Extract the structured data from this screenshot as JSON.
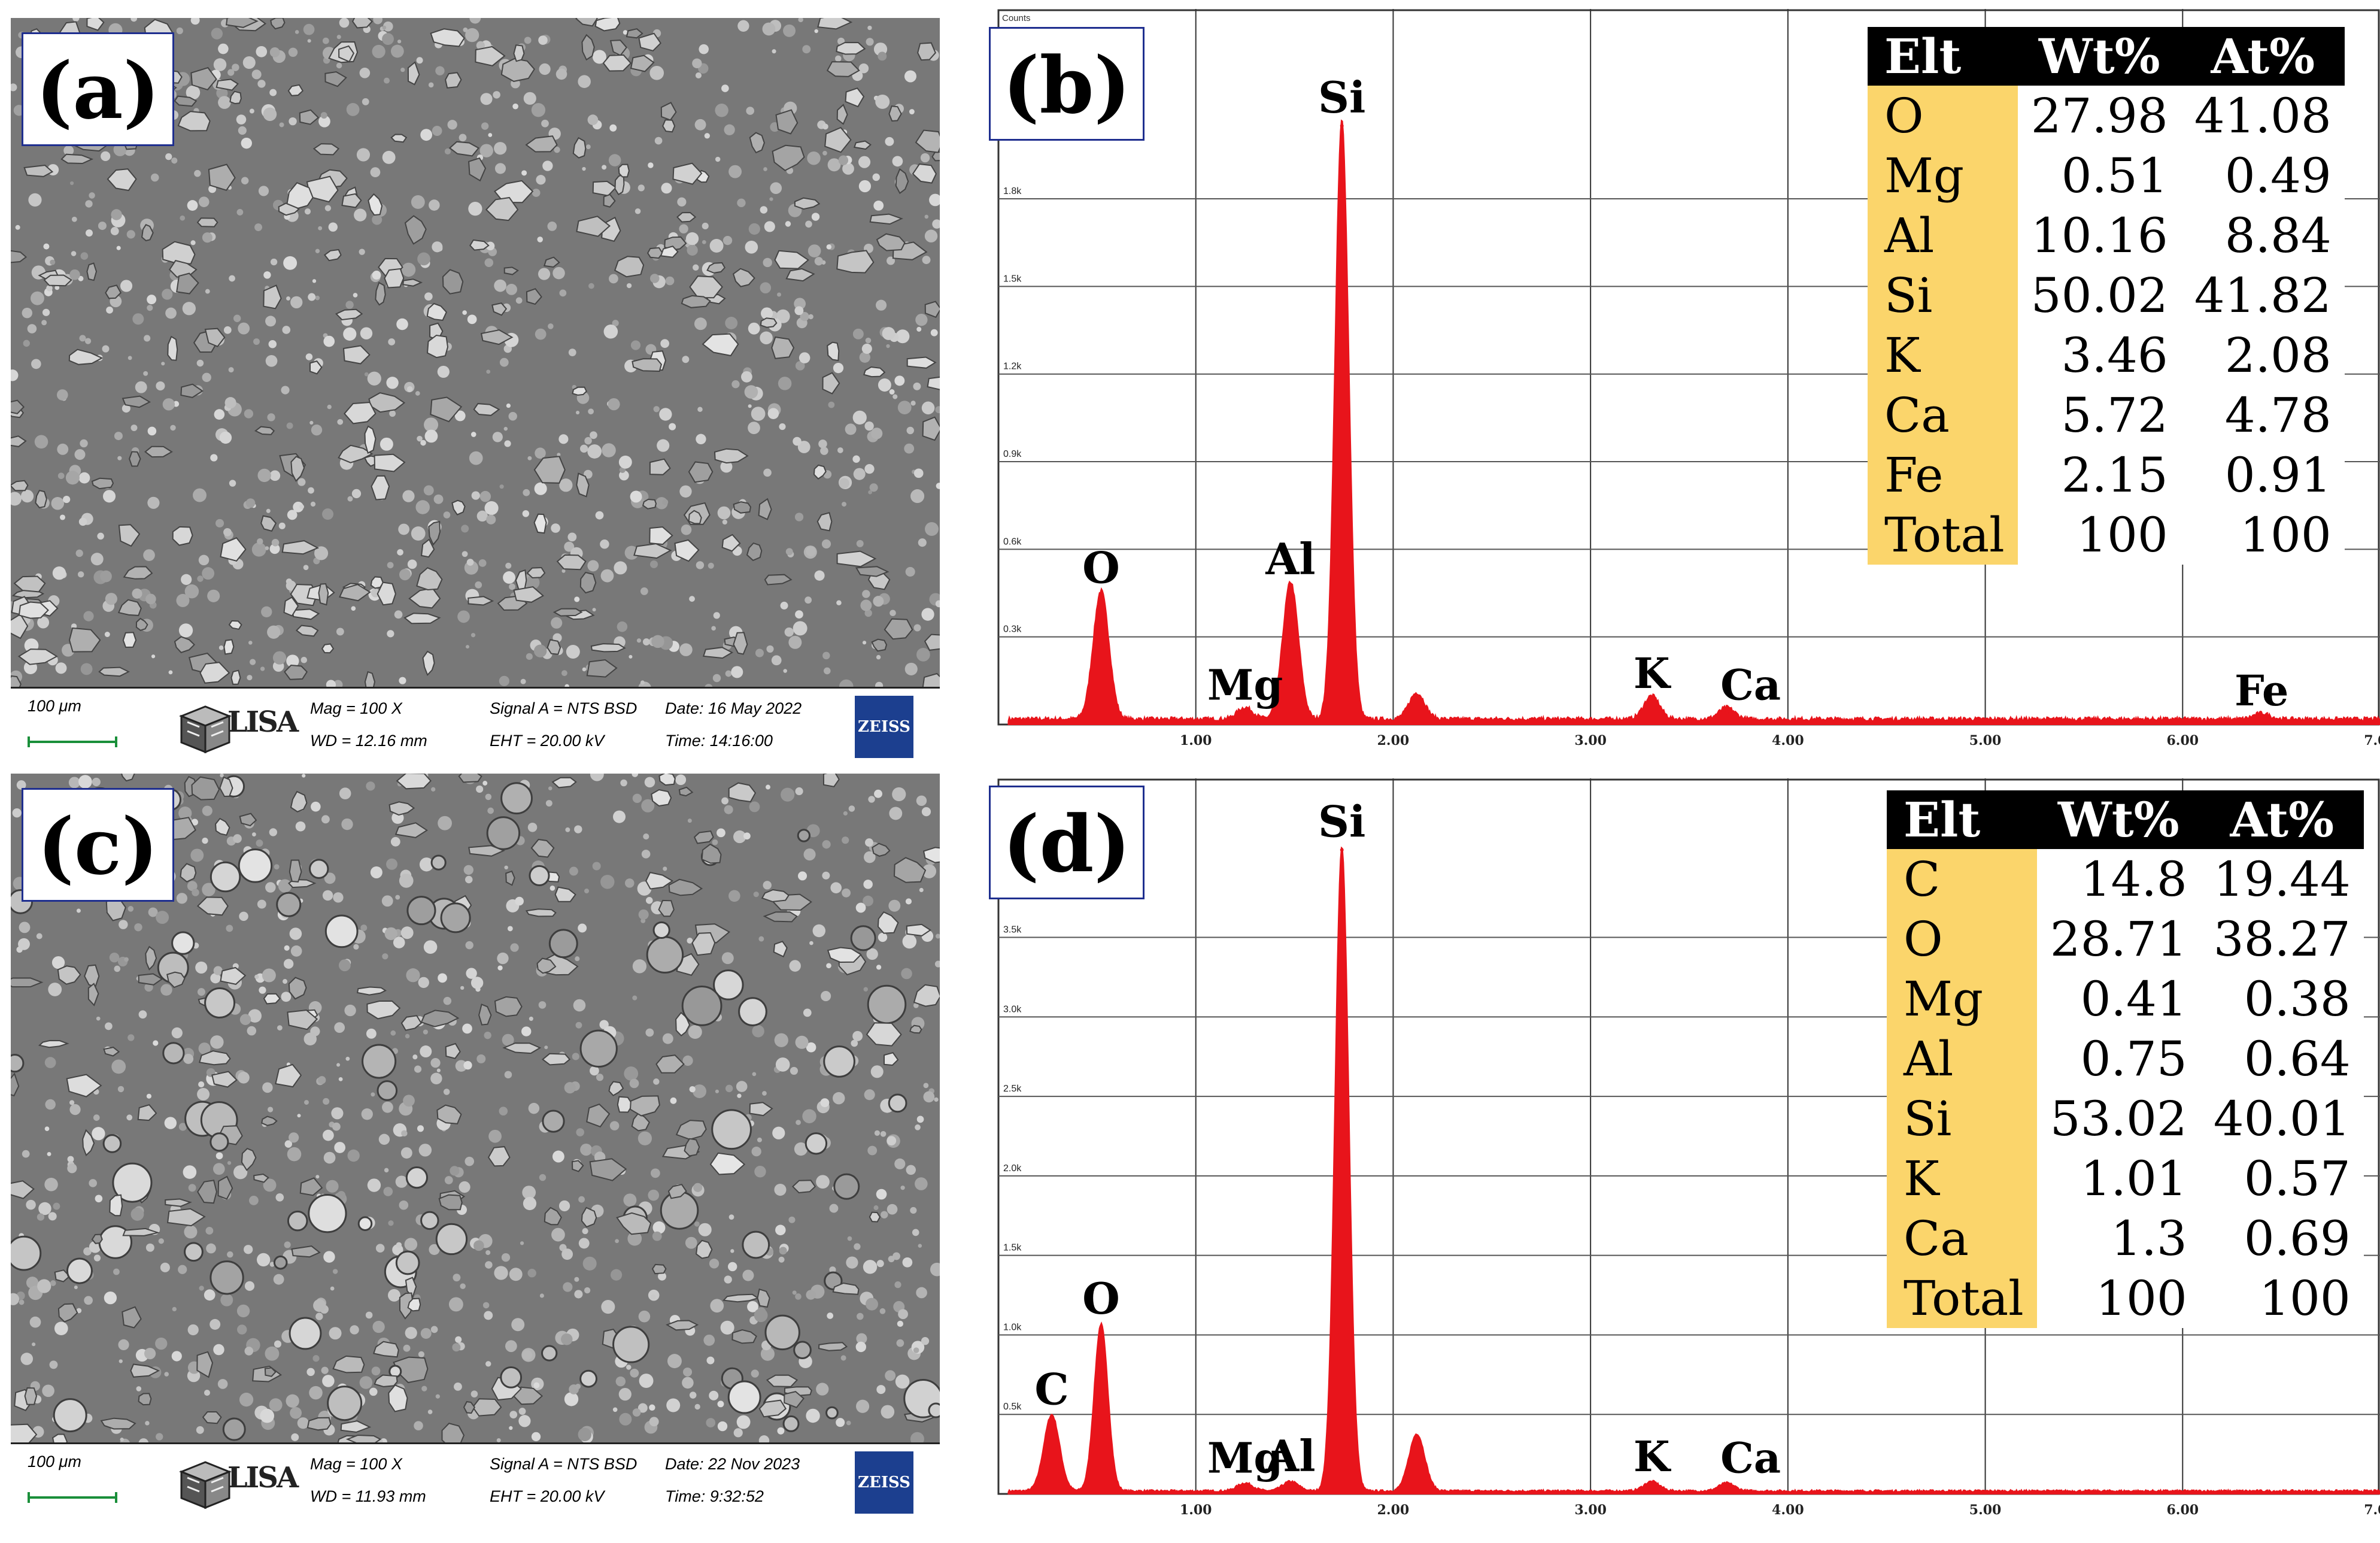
{
  "sem_panels": [
    {
      "label": "(a)",
      "scale": "100 μm",
      "lisa": "LISA",
      "mag": "Mag =    100 X",
      "wd": "WD = 12.16 mm",
      "signal": "Signal A = NTS BSD",
      "eht": "EHT = 20.00 kV",
      "date": "Date: 16 May 2022",
      "time": "Time: 14:16:00",
      "brand": "ZEISS"
    },
    {
      "label": "(c)",
      "scale": "100 μm",
      "lisa": "LISA",
      "mag": "Mag =    100 X",
      "wd": "WD = 11.93 mm",
      "signal": "Signal A = NTS BSD",
      "eht": "EHT = 20.00 kV",
      "date": "Date: 22 Nov 2023",
      "time": "Time: 9:32:52",
      "brand": "ZEISS"
    }
  ],
  "chart_data": [
    {
      "type": "area",
      "panel_label": "(b)",
      "corner_label": "Counts",
      "color": "#e8141b",
      "x_ticks": [
        "1.00",
        "2.00",
        "3.00",
        "4.00",
        "5.00",
        "6.00",
        "7.00"
      ],
      "y_ticks": [
        "0.3k",
        "0.6k",
        "0.9k",
        "1.2k",
        "1.5k",
        "1.8k"
      ],
      "xlim": [
        0,
        7
      ],
      "ylim": [
        0,
        2.45
      ],
      "peaks": [
        {
          "label": "O",
          "x": 0.52,
          "y": 0.44
        },
        {
          "label": "Mg",
          "x": 1.25,
          "y": 0.04
        },
        {
          "label": "Al",
          "x": 1.48,
          "y": 0.47
        },
        {
          "label": "Si",
          "x": 1.74,
          "y": 2.05
        },
        {
          "label": "K",
          "x": 3.31,
          "y": 0.08
        },
        {
          "label": "Ca",
          "x": 3.69,
          "y": 0.04
        },
        {
          "label": "Fe",
          "x": 6.4,
          "y": 0.02
        }
      ],
      "extra_bumps": [
        {
          "x": 2.12,
          "y": 0.09
        }
      ],
      "table": {
        "headers": [
          "Elt",
          "Wt%",
          "At%"
        ],
        "rows": [
          [
            "O",
            "27.98",
            "41.08"
          ],
          [
            "Mg",
            "0.51",
            "0.49"
          ],
          [
            "Al",
            "10.16",
            "8.84"
          ],
          [
            "Si",
            "50.02",
            "41.82"
          ],
          [
            "K",
            "3.46",
            "2.08"
          ],
          [
            "Ca",
            "5.72",
            "4.78"
          ],
          [
            "Fe",
            "2.15",
            "0.91"
          ],
          [
            "Total",
            "100",
            "100"
          ]
        ]
      }
    },
    {
      "type": "area",
      "panel_label": "(d)",
      "corner_label": "",
      "color": "#e8141b",
      "x_ticks": [
        "1.00",
        "2.00",
        "3.00",
        "4.00",
        "5.00",
        "6.00",
        "7.00"
      ],
      "y_ticks": [
        "0.5k",
        "1.0k",
        "1.5k",
        "2.0k",
        "2.5k",
        "3.0k",
        "3.5k"
      ],
      "xlim": [
        0,
        7
      ],
      "ylim": [
        0,
        4.5
      ],
      "peaks": [
        {
          "label": "C",
          "x": 0.27,
          "y": 0.48
        },
        {
          "label": "O",
          "x": 0.52,
          "y": 1.05
        },
        {
          "label": "Mg",
          "x": 1.25,
          "y": 0.05
        },
        {
          "label": "Al",
          "x": 1.48,
          "y": 0.06
        },
        {
          "label": "Si",
          "x": 1.74,
          "y": 4.05
        },
        {
          "label": "K",
          "x": 3.31,
          "y": 0.06
        },
        {
          "label": "Ca",
          "x": 3.69,
          "y": 0.05
        }
      ],
      "extra_bumps": [
        {
          "x": 2.12,
          "y": 0.36
        }
      ],
      "table": {
        "headers": [
          "Elt",
          "Wt%",
          "At%"
        ],
        "rows": [
          [
            "C",
            "14.8",
            "19.44"
          ],
          [
            "O",
            "28.71",
            "38.27"
          ],
          [
            "Mg",
            "0.41",
            "0.38"
          ],
          [
            "Al",
            "0.75",
            "0.64"
          ],
          [
            "Si",
            "53.02",
            "40.01"
          ],
          [
            "K",
            "1.01",
            "0.57"
          ],
          [
            "Ca",
            "1.3",
            "0.69"
          ],
          [
            "Total",
            "100",
            "100"
          ]
        ]
      }
    }
  ]
}
